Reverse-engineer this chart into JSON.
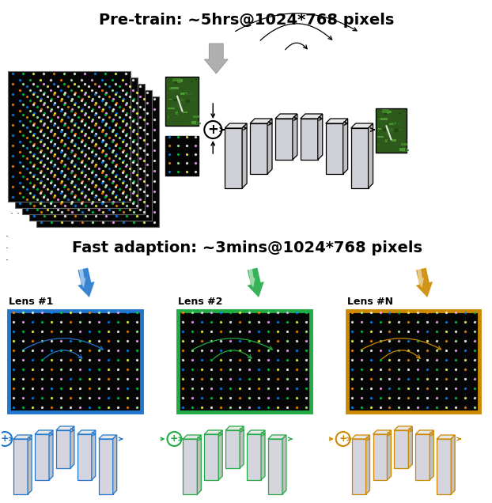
{
  "title1": "Pre-train: ~5hrs@1024*768 pixels",
  "title2": "Fast adaption: ~3mins@1024*768 pixels",
  "lens_labels": [
    "Lens #1",
    "Lens #2",
    "Lens #N"
  ],
  "lens_colors": [
    "#2277cc",
    "#22aa44",
    "#cc8800"
  ],
  "bg_color": "#ffffff",
  "title_fontsize": 14,
  "label_fontsize": 9,
  "fig_w": 6.22,
  "fig_h": 6.36,
  "dpi": 100
}
